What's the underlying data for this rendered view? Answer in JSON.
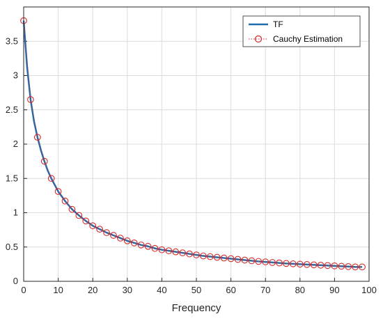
{
  "chart_data": {
    "type": "line",
    "title": "",
    "xlabel": "Frequency",
    "ylabel": "",
    "xlim": [
      0,
      100
    ],
    "ylim": [
      0,
      4
    ],
    "grid": true,
    "legend_position": "top-right",
    "x_ticks": [
      "0",
      "10",
      "20",
      "30",
      "40",
      "50",
      "60",
      "70",
      "80",
      "90",
      "100"
    ],
    "y_ticks": [
      "0",
      "0.5",
      "1",
      "1.5",
      "2",
      "2.5",
      "3",
      "3.5"
    ],
    "x_tick_values": [
      0,
      10,
      20,
      30,
      40,
      50,
      60,
      70,
      80,
      90,
      100
    ],
    "y_tick_values": [
      0,
      0.5,
      1,
      1.5,
      2,
      2.5,
      3,
      3.5
    ],
    "series": [
      {
        "name": "TF",
        "style": "solid line",
        "color": "#1f6faf",
        "x": [
          0,
          1,
          2,
          3,
          4,
          5,
          6,
          7,
          8,
          10,
          12,
          14,
          16,
          18,
          20,
          22,
          24,
          26,
          28,
          30,
          32,
          34,
          36,
          38,
          40,
          44,
          48,
          52,
          56,
          60,
          64,
          68,
          72,
          76,
          80,
          84,
          88,
          92,
          96,
          98
        ],
        "y": [
          3.8,
          3.12,
          2.65,
          2.33,
          2.1,
          1.91,
          1.75,
          1.61,
          1.5,
          1.31,
          1.17,
          1.05,
          0.96,
          0.88,
          0.81,
          0.76,
          0.71,
          0.67,
          0.63,
          0.59,
          0.56,
          0.53,
          0.51,
          0.48,
          0.46,
          0.43,
          0.4,
          0.37,
          0.35,
          0.33,
          0.31,
          0.29,
          0.275,
          0.26,
          0.25,
          0.24,
          0.23,
          0.22,
          0.21,
          0.21
        ]
      },
      {
        "name": "Cauchy Estimation",
        "style": "dotted line with circle markers",
        "color": "#d62728",
        "x": [
          0,
          2,
          4,
          6,
          8,
          10,
          12,
          14,
          16,
          18,
          20,
          22,
          24,
          26,
          28,
          30,
          32,
          34,
          36,
          38,
          40,
          42,
          44,
          46,
          48,
          50,
          52,
          54,
          56,
          58,
          60,
          62,
          64,
          66,
          68,
          70,
          72,
          74,
          76,
          78,
          80,
          82,
          84,
          86,
          88,
          90,
          92,
          94,
          96,
          98
        ],
        "y": [
          3.8,
          2.65,
          2.1,
          1.75,
          1.5,
          1.31,
          1.17,
          1.05,
          0.96,
          0.88,
          0.81,
          0.76,
          0.71,
          0.67,
          0.63,
          0.59,
          0.56,
          0.53,
          0.51,
          0.48,
          0.46,
          0.445,
          0.43,
          0.415,
          0.4,
          0.385,
          0.37,
          0.36,
          0.35,
          0.34,
          0.33,
          0.32,
          0.31,
          0.3,
          0.29,
          0.283,
          0.275,
          0.268,
          0.26,
          0.255,
          0.25,
          0.245,
          0.24,
          0.235,
          0.23,
          0.225,
          0.22,
          0.215,
          0.21,
          0.21
        ]
      }
    ]
  }
}
